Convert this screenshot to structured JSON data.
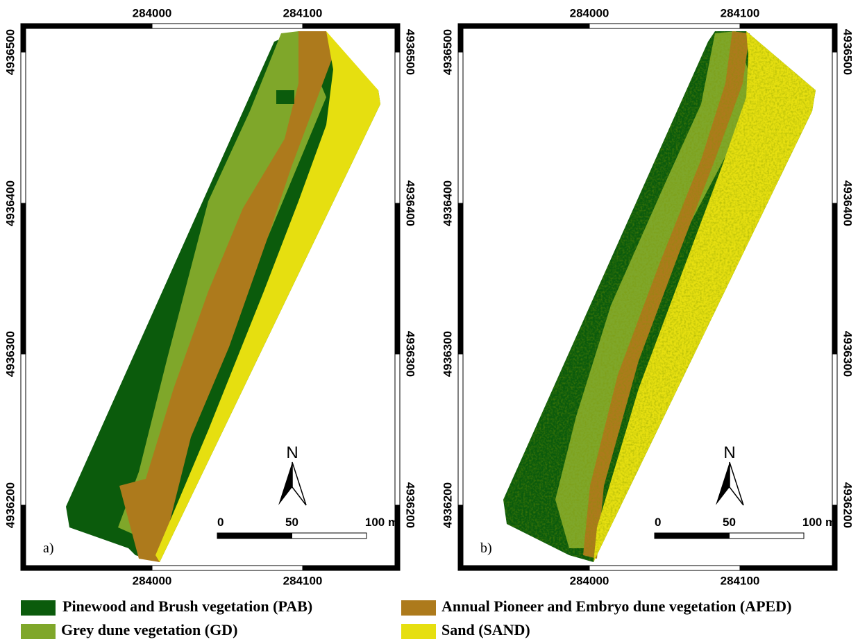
{
  "panels": [
    {
      "label": "a)",
      "x_ticks_top": [
        284000,
        284100
      ],
      "x_ticks_bottom": [
        284000,
        284100
      ],
      "y_ticks_left": [
        4936500,
        4936400,
        4936300,
        4936200
      ],
      "y_ticks_right": [
        4936500,
        4936400,
        4936300,
        4936200
      ],
      "north": "N",
      "scale_labels": [
        0,
        50,
        "100 m"
      ]
    },
    {
      "label": "b)",
      "x_ticks_top": [
        284000,
        284100
      ],
      "x_ticks_bottom": [
        284000,
        284100
      ],
      "y_ticks_left": [
        4936500,
        4936400,
        4936300,
        4936200
      ],
      "y_ticks_right": [
        4936500,
        4936400,
        4936300,
        4936200
      ],
      "north": "N",
      "scale_labels": [
        0,
        50,
        "100 m"
      ]
    }
  ],
  "legend": [
    {
      "label": "Pinewood and Brush vegetation (PAB)",
      "color": "#0b5b0c"
    },
    {
      "label": "Annual Pioneer and Embryo dune vegetation (APED)",
      "color": "#ad7a1c"
    },
    {
      "label": "Grey dune vegetation (GD)",
      "color": "#7fa72a"
    },
    {
      "label": "Sand (SAND)",
      "color": "#e6df10"
    }
  ]
}
